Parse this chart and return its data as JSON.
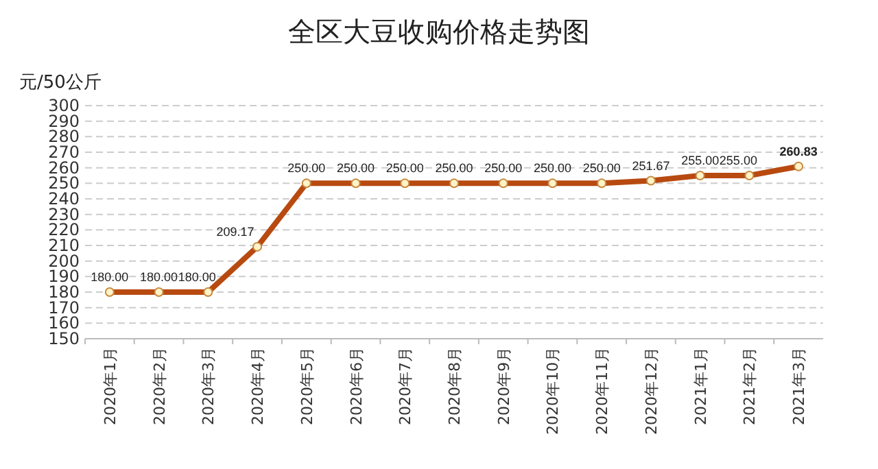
{
  "chart_data": {
    "type": "line",
    "title": "全区大豆收购价格走势图",
    "ylabel": "元/50公斤",
    "categories": [
      "2020年1月",
      "2020年2月",
      "2020年3月",
      "2020年4月",
      "2020年5月",
      "2020年6月",
      "2020年7月",
      "2020年8月",
      "2020年9月",
      "2020年10月",
      "2020年11月",
      "2020年12月",
      "2021年1月",
      "2021年2月",
      "2021年3月"
    ],
    "series": [
      {
        "color": "#b84a10",
        "values": [
          180,
          180,
          180,
          209.17,
          250,
          250,
          250,
          250,
          250,
          250,
          250,
          251.67,
          255,
          255,
          260.83
        ],
        "value_labels": [
          "180.00",
          "180.00",
          "180.00",
          "209.17",
          "250.00",
          "250.00",
          "250.00",
          "250.00",
          "250.00",
          "250.00",
          "250.00",
          "251.67",
          "255.00",
          "255.00",
          "260.83"
        ]
      }
    ],
    "ylim": [
      150,
      300
    ],
    "yticks": [
      150,
      160,
      170,
      180,
      190,
      200,
      210,
      220,
      230,
      240,
      250,
      260,
      270,
      280,
      290,
      300
    ],
    "grid": "y",
    "marker": "circle"
  }
}
